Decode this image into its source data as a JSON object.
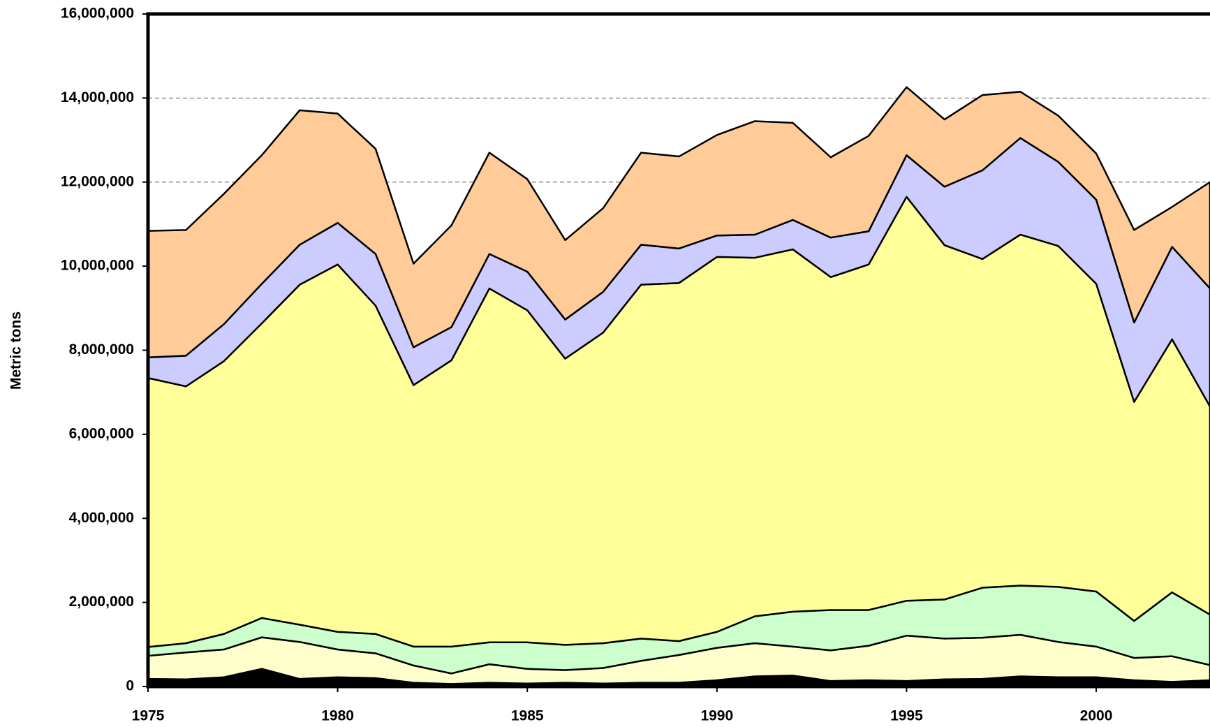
{
  "chart_data": {
    "type": "stacked-area",
    "y_label": "Metric tons",
    "x": [
      1975,
      1976,
      1977,
      1978,
      1979,
      1980,
      1981,
      1982,
      1983,
      1984,
      1985,
      1986,
      1987,
      1988,
      1989,
      1990,
      1991,
      1992,
      1993,
      1994,
      1995,
      1996,
      1997,
      1998,
      1999,
      2000,
      2001,
      2002,
      2003
    ],
    "xlim": [
      1975,
      2003
    ],
    "xticks": [
      1975,
      1980,
      1985,
      1990,
      1995,
      2000
    ],
    "ylim": [
      0,
      16000000
    ],
    "yticks": [
      0,
      {
        "value": 2000000,
        "label": "2,000,000"
      },
      {
        "value": 4000000,
        "label": "4,000,000"
      },
      {
        "value": 6000000,
        "label": "6,000,000"
      },
      {
        "value": 8000000,
        "label": "8,000,000"
      },
      {
        "value": 10000000,
        "label": "10,000,000"
      },
      {
        "value": 12000000,
        "label": "12,000,000"
      },
      {
        "value": 14000000,
        "label": "14,000,000"
      },
      {
        "value": 16000000,
        "label": "16,000,000"
      }
    ],
    "grid": true,
    "series": [
      {
        "color": "#000000",
        "values": [
          180000,
          170000,
          220000,
          420000,
          180000,
          220000,
          200000,
          90000,
          60000,
          90000,
          70000,
          90000,
          70000,
          90000,
          90000,
          150000,
          240000,
          260000,
          130000,
          150000,
          130000,
          170000,
          180000,
          240000,
          220000,
          220000,
          150000,
          110000,
          150000
        ]
      },
      {
        "color": "#ffffcc",
        "values": [
          550000,
          640000,
          660000,
          750000,
          880000,
          660000,
          590000,
          410000,
          250000,
          440000,
          350000,
          300000,
          370000,
          520000,
          660000,
          770000,
          790000,
          690000,
          730000,
          820000,
          1080000,
          970000,
          980000,
          990000,
          840000,
          730000,
          530000,
          610000,
          360000
        ]
      },
      {
        "color": "#ccffcc",
        "values": [
          210000,
          220000,
          370000,
          460000,
          410000,
          420000,
          460000,
          450000,
          640000,
          520000,
          630000,
          600000,
          590000,
          530000,
          330000,
          380000,
          640000,
          830000,
          960000,
          850000,
          830000,
          930000,
          1190000,
          1170000,
          1310000,
          1310000,
          880000,
          1520000,
          1200000
        ]
      },
      {
        "color": "#ffff99",
        "values": [
          6400000,
          6110000,
          6490000,
          7010000,
          8090000,
          8740000,
          7810000,
          6220000,
          6810000,
          8420000,
          7900000,
          6810000,
          7390000,
          8420000,
          8520000,
          8920000,
          8530000,
          8620000,
          7920000,
          8220000,
          9610000,
          8430000,
          7820000,
          8350000,
          8110000,
          7320000,
          5210000,
          6020000,
          4950000
        ]
      },
      {
        "color": "#ccccff",
        "values": [
          490000,
          730000,
          880000,
          940000,
          950000,
          990000,
          1230000,
          900000,
          790000,
          820000,
          920000,
          930000,
          970000,
          950000,
          820000,
          510000,
          550000,
          700000,
          940000,
          790000,
          990000,
          1390000,
          2110000,
          2300000,
          2000000,
          2000000,
          1890000,
          2200000,
          2810000
        ]
      },
      {
        "color": "#ffcc99",
        "values": [
          3010000,
          2990000,
          3100000,
          3060000,
          3200000,
          2600000,
          2500000,
          1990000,
          2420000,
          2410000,
          2200000,
          1890000,
          1990000,
          2190000,
          2190000,
          2390000,
          2700000,
          2310000,
          1910000,
          2270000,
          1620000,
          1600000,
          1790000,
          1100000,
          1100000,
          1100000,
          2200000,
          950000,
          2530000
        ]
      }
    ]
  }
}
